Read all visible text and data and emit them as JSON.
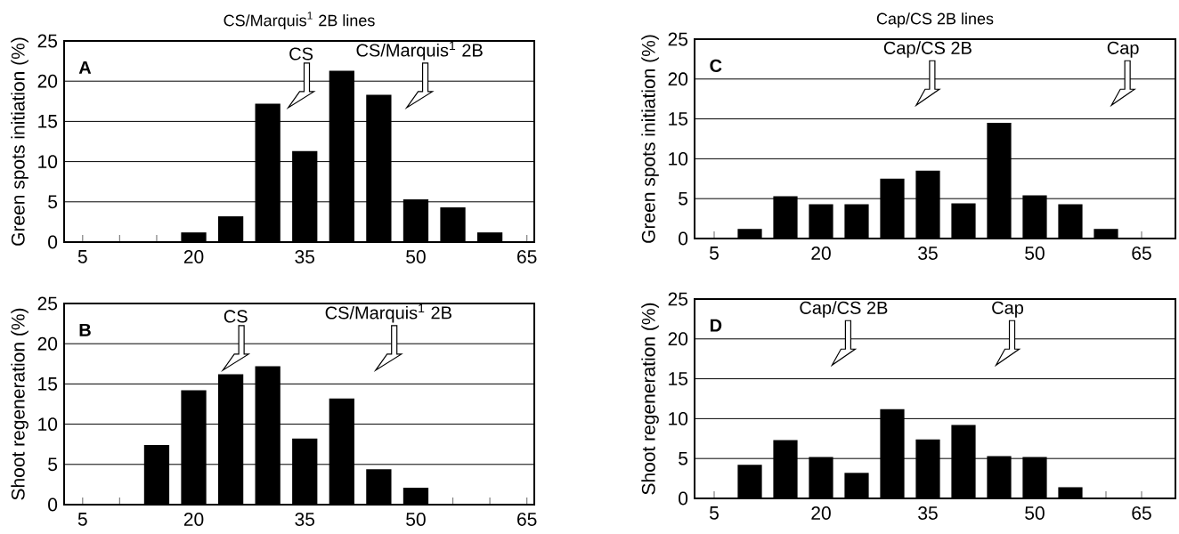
{
  "chart_data": [
    {
      "type": "bar",
      "title": "CS/Marquis$^{1}$ 2B lines",
      "ylabel": "Green spots initiation (%)",
      "x": [
        20,
        25,
        30,
        35,
        40,
        45,
        50,
        55,
        60
      ],
      "values": [
        1.2,
        3.2,
        17.2,
        11.3,
        21.3,
        18.3,
        5.3,
        4.3,
        1.2
      ],
      "color": "#000000",
      "xlim": [
        2.5,
        66
      ],
      "ylim": [
        0,
        25
      ],
      "xticks": [
        5,
        {
          "value": 10,
          "label": null
        },
        {
          "value": 15,
          "label": null
        },
        20,
        {
          "value": 25,
          "label": null
        },
        {
          "value": 30,
          "label": null
        },
        35,
        {
          "value": 40,
          "label": null
        },
        {
          "value": 45,
          "label": null
        },
        50,
        {
          "value": 55,
          "label": null
        },
        {
          "value": 60,
          "label": null
        },
        65
      ],
      "yticks": [
        0,
        5,
        10,
        15,
        20,
        25
      ],
      "grid": "y",
      "annotations": [
        "A",
        "CS",
        "CS/Marquis$^{1}$ 2B"
      ]
    },
    {
      "type": "bar",
      "title": "Cap/CS 2B lines",
      "ylabel": "Green spots initiation (%)",
      "x": [
        10,
        15,
        20,
        25,
        30,
        35,
        40,
        45,
        50,
        55,
        60
      ],
      "values": [
        1.2,
        5.3,
        4.3,
        4.3,
        7.5,
        8.5,
        4.4,
        14.5,
        5.4,
        4.3,
        1.2
      ],
      "color": "#000000",
      "xlim": [
        2.25,
        69.75
      ],
      "ylim": [
        0,
        25
      ],
      "xticks": [
        5,
        {
          "value": 10,
          "label": null
        },
        {
          "value": 15,
          "label": null
        },
        20,
        {
          "value": 25,
          "label": null
        },
        {
          "value": 30,
          "label": null
        },
        35,
        {
          "value": 40,
          "label": null
        },
        {
          "value": 45,
          "label": null
        },
        50,
        {
          "value": 55,
          "label": null
        },
        {
          "value": 60,
          "label": null
        },
        65
      ],
      "yticks": [
        0,
        5,
        10,
        15,
        20,
        25
      ],
      "grid": "y",
      "annotations": [
        "C",
        "Cap/CS 2B",
        "Cap"
      ]
    },
    {
      "type": "bar",
      "ylabel": "Shoot regeneration (%)",
      "x": [
        15,
        20,
        25,
        30,
        35,
        40,
        45,
        50
      ],
      "values": [
        7.4,
        14.2,
        16.2,
        17.2,
        8.2,
        13.2,
        4.4,
        2.1
      ],
      "color": "#000000",
      "xlim": [
        2.5,
        66
      ],
      "ylim": [
        0,
        25
      ],
      "xticks": [
        5,
        {
          "value": 10,
          "label": null
        },
        {
          "value": 15,
          "label": null
        },
        20,
        {
          "value": 25,
          "label": null
        },
        {
          "value": 30,
          "label": null
        },
        35,
        {
          "value": 40,
          "label": null
        },
        {
          "value": 45,
          "label": null
        },
        50,
        {
          "value": 55,
          "label": null
        },
        {
          "value": 60,
          "label": null
        },
        65
      ],
      "yticks": [
        0,
        5,
        10,
        15,
        20,
        25
      ],
      "grid": "y",
      "annotations": [
        "B",
        "CS",
        "CS/Marquis$^{1}$ 2B"
      ]
    },
    {
      "type": "bar",
      "ylabel": "Shoot regeneration (%)",
      "x": [
        10,
        15,
        20,
        25,
        30,
        35,
        40,
        45,
        50,
        55
      ],
      "values": [
        4.2,
        7.3,
        5.2,
        3.2,
        11.2,
        7.4,
        9.2,
        5.3,
        5.2,
        1.4
      ],
      "color": "#000000",
      "xlim": [
        2.25,
        69.75
      ],
      "ylim": [
        0,
        25
      ],
      "xticks": [
        5,
        {
          "value": 10,
          "label": null
        },
        {
          "value": 15,
          "label": null
        },
        20,
        {
          "value": 25,
          "label": null
        },
        {
          "value": 30,
          "label": null
        },
        35,
        {
          "value": 40,
          "label": null
        },
        {
          "value": 45,
          "label": null
        },
        50,
        {
          "value": 55,
          "label": null
        },
        {
          "value": 60,
          "label": null
        },
        65
      ],
      "yticks": [
        0,
        5,
        10,
        15,
        20,
        25
      ],
      "grid": "y",
      "annotations": [
        "D",
        "Cap/CS 2B",
        "Cap"
      ]
    }
  ]
}
